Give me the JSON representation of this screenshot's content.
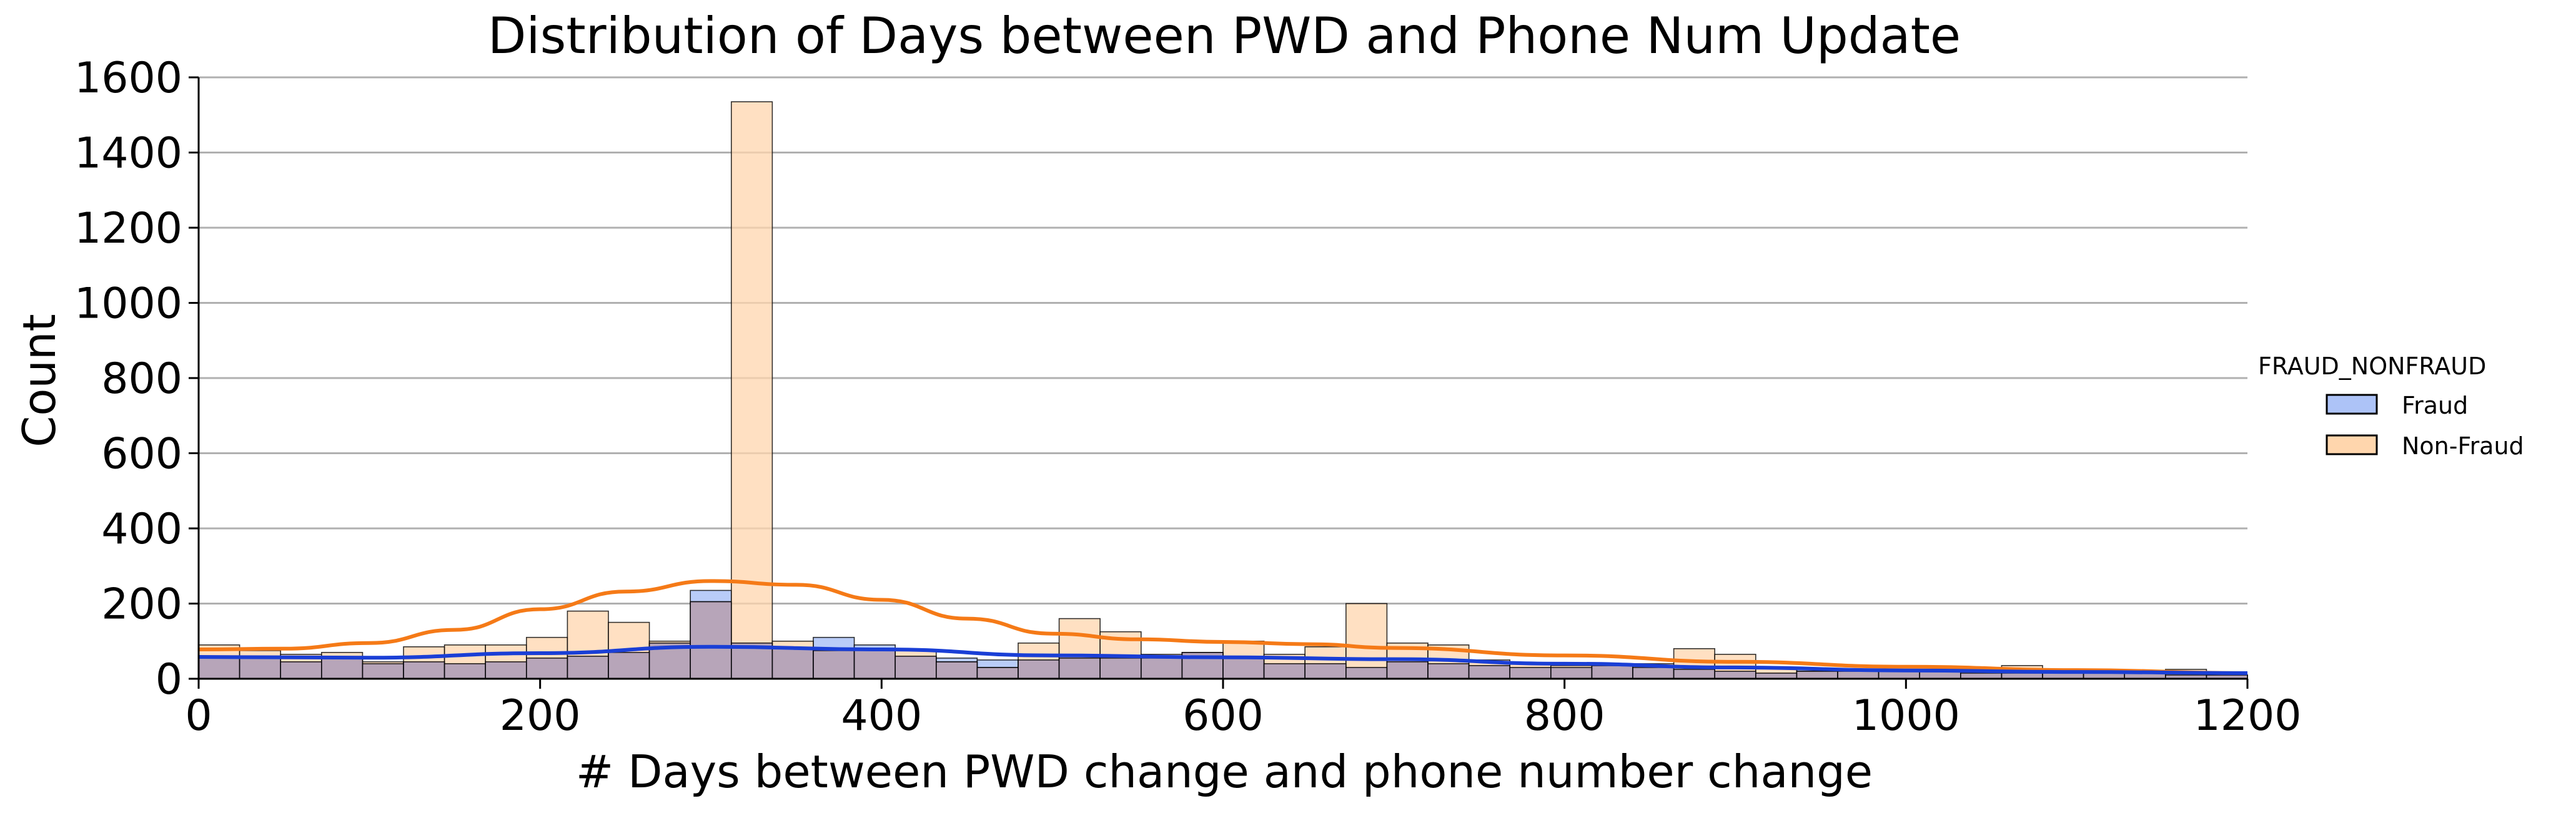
{
  "chart_data": {
    "type": "bar",
    "title": "Distribution of Days between PWD and Phone Num Update",
    "xlabel": "# Days between PWD change and phone number change",
    "ylabel": "Count",
    "xlim": [
      0,
      1200
    ],
    "ylim": [
      0,
      1600
    ],
    "xticks": [
      0,
      200,
      400,
      600,
      800,
      1000,
      1200
    ],
    "yticks": [
      0,
      200,
      400,
      600,
      800,
      1000,
      1200,
      1400,
      1600
    ],
    "xtick_labels": [
      "0",
      "200",
      "400",
      "600",
      "800",
      "1000",
      "1200"
    ],
    "ytick_labels": [
      "0",
      "200",
      "400",
      "600",
      "800",
      "1000",
      "1200",
      "1400",
      "1600"
    ],
    "grid": "horizontal",
    "legend": {
      "title": "FRAUD_NONFRAUD",
      "placement": "right",
      "entries": [
        "Fraud",
        "Non-Fraud"
      ]
    },
    "bin_width": 24,
    "bin_start": 0,
    "series": [
      {
        "name": "Fraud",
        "fill": "#adc3f7",
        "line": "#1a3fd6",
        "values": [
          60,
          55,
          45,
          55,
          40,
          45,
          40,
          45,
          55,
          60,
          70,
          95,
          235,
          95,
          80,
          110,
          90,
          60,
          55,
          50,
          50,
          55,
          55,
          55,
          70,
          55,
          40,
          40,
          30,
          45,
          40,
          35,
          30,
          30,
          35,
          30,
          25,
          20,
          15,
          25,
          20,
          20,
          20,
          15,
          15,
          15,
          15,
          15,
          10,
          10
        ],
        "kde": [
          [
            0,
            58
          ],
          [
            100,
            56
          ],
          [
            200,
            68
          ],
          [
            300,
            85
          ],
          [
            400,
            78
          ],
          [
            500,
            62
          ],
          [
            600,
            57
          ],
          [
            700,
            52
          ],
          [
            800,
            40
          ],
          [
            900,
            30
          ],
          [
            1000,
            22
          ],
          [
            1100,
            18
          ],
          [
            1200,
            15
          ]
        ]
      },
      {
        "name": "Non-Fraud",
        "fill": "#ffd6ad",
        "line": "#f57a17",
        "values": [
          90,
          75,
          65,
          70,
          45,
          85,
          90,
          90,
          110,
          180,
          150,
          100,
          205,
          1535,
          100,
          75,
          80,
          75,
          45,
          30,
          95,
          160,
          125,
          65,
          70,
          100,
          65,
          85,
          200,
          95,
          90,
          50,
          40,
          35,
          35,
          40,
          80,
          65,
          30,
          20,
          20,
          25,
          20,
          20,
          35,
          20,
          15,
          15,
          25,
          10
        ],
        "kde": [
          [
            0,
            78
          ],
          [
            50,
            80
          ],
          [
            100,
            95
          ],
          [
            150,
            130
          ],
          [
            200,
            185
          ],
          [
            250,
            232
          ],
          [
            300,
            260
          ],
          [
            350,
            250
          ],
          [
            400,
            210
          ],
          [
            450,
            160
          ],
          [
            500,
            120
          ],
          [
            550,
            105
          ],
          [
            600,
            98
          ],
          [
            650,
            92
          ],
          [
            700,
            82
          ],
          [
            800,
            62
          ],
          [
            900,
            45
          ],
          [
            1000,
            32
          ],
          [
            1100,
            23
          ],
          [
            1200,
            15
          ]
        ]
      }
    ]
  }
}
